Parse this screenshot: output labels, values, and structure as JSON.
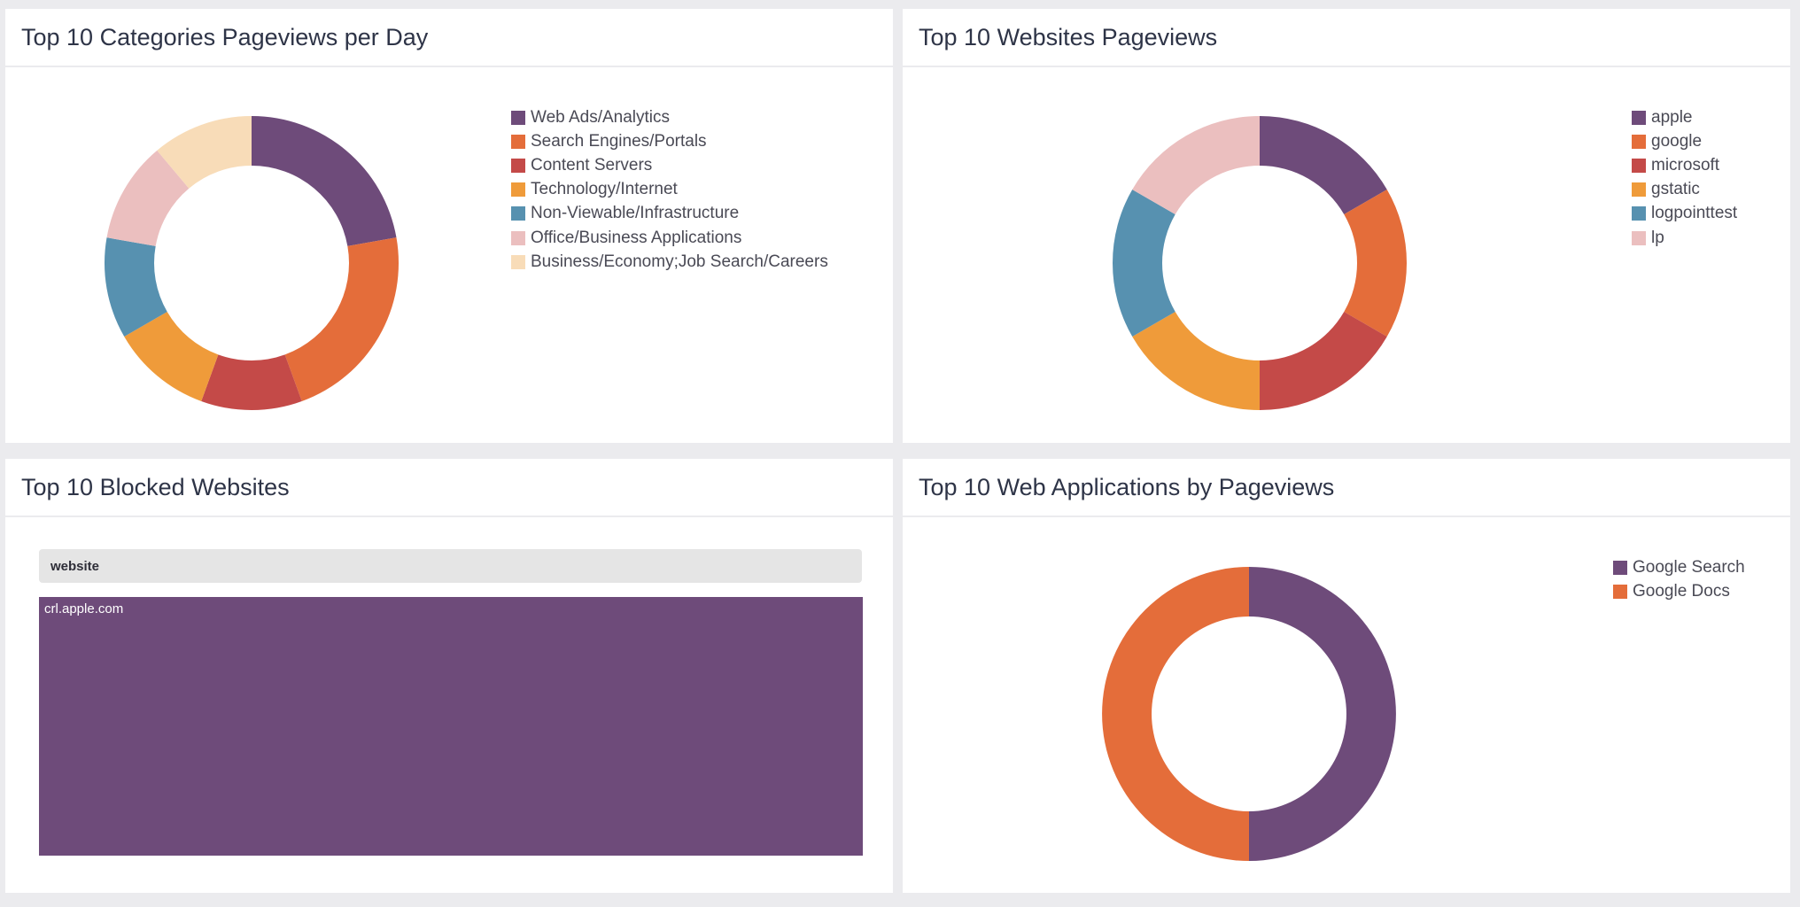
{
  "panels": {
    "categories": {
      "title": "Top 10 Categories Pageviews per Day",
      "chart_data": {
        "type": "pie",
        "donut": true,
        "title": "Top 10 Categories Pageviews per Day",
        "labels": [
          "Web Ads/Analytics",
          "Search Engines/Portals",
          "Content Servers",
          "Technology/Internet",
          "Non-Viewable/Infrastructure",
          "Office/Business Applications",
          "Business/Economy;Job Search/Careers"
        ],
        "values": [
          2,
          2,
          1,
          1,
          1,
          1,
          1
        ],
        "colors": [
          "#6e4b7a",
          "#e46d3a",
          "#c44a48",
          "#ef9b3a",
          "#5791b0",
          "#ebbfbf",
          "#f8dcb8"
        ],
        "legend": "right"
      }
    },
    "websites": {
      "title": "Top 10 Websites Pageviews",
      "chart_data": {
        "type": "pie",
        "donut": true,
        "title": "Top 10 Websites Pageviews",
        "labels": [
          "apple",
          "google",
          "microsoft",
          "gstatic",
          "logpointtest",
          "lp"
        ],
        "values": [
          1,
          1,
          1,
          1,
          1,
          1
        ],
        "colors": [
          "#6e4b7a",
          "#e46d3a",
          "#c44a48",
          "#ef9b3a",
          "#5791b0",
          "#ebbfbf"
        ],
        "legend": "right"
      }
    },
    "blocked": {
      "title": "Top 10 Blocked Websites",
      "column": "website",
      "rows": [
        "crl.apple.com"
      ]
    },
    "webapps": {
      "title": "Top 10 Web Applications by Pageviews",
      "chart_data": {
        "type": "pie",
        "donut": true,
        "title": "Top 10 Web Applications by Pageviews",
        "labels": [
          "Google Search",
          "Google Docs"
        ],
        "values": [
          1,
          1
        ],
        "colors": [
          "#6e4b7a",
          "#e46d3a"
        ],
        "legend": "right"
      }
    }
  }
}
